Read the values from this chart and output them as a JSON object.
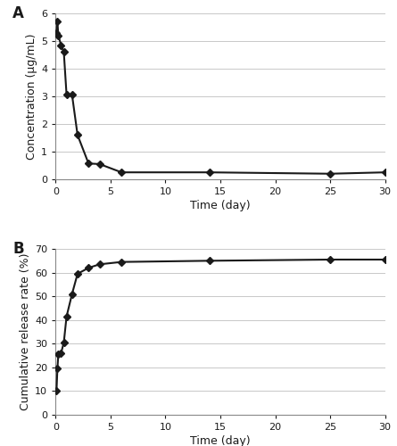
{
  "panel_A": {
    "time": [
      0.083,
      0.167,
      0.25,
      0.5,
      0.75,
      1.0,
      1.5,
      2.0,
      3.0,
      4.0,
      6.0,
      14.0,
      25.0,
      30.0
    ],
    "concentration": [
      5.3,
      5.7,
      5.2,
      4.85,
      4.6,
      3.05,
      3.05,
      1.6,
      0.57,
      0.55,
      0.25,
      0.25,
      0.2,
      0.25
    ],
    "ylabel": "Concentration (μg/mL)",
    "xlabel": "Time (day)",
    "ylim": [
      0,
      6
    ],
    "yticks": [
      0,
      1,
      2,
      3,
      4,
      5,
      6
    ],
    "xticks": [
      0,
      5,
      10,
      15,
      20,
      25,
      30
    ],
    "label": "A"
  },
  "panel_B": {
    "time": [
      0.083,
      0.167,
      0.25,
      0.5,
      0.75,
      1.0,
      1.5,
      2.0,
      3.0,
      4.0,
      6.0,
      14.0,
      25.0,
      30.0
    ],
    "cumulative": [
      10.0,
      19.5,
      25.5,
      26.0,
      30.5,
      41.5,
      51.0,
      59.5,
      62.0,
      63.5,
      64.5,
      65.0,
      65.5,
      65.5
    ],
    "ylabel": "Cumulative release rate (%)",
    "xlabel": "Time (day)",
    "ylim": [
      0,
      70
    ],
    "yticks": [
      0,
      10,
      20,
      30,
      40,
      50,
      60,
      70
    ],
    "xticks": [
      0,
      5,
      10,
      15,
      20,
      25,
      30
    ],
    "label": "B"
  },
  "line_color": "#1a1a1a",
  "marker": "D",
  "markersize": 4.5,
  "linewidth": 1.5,
  "background_color": "#ffffff",
  "grid_color": "#c8c8c8",
  "font_color": "#1a1a1a",
  "tick_fontsize": 8,
  "label_fontsize": 9,
  "panel_label_fontsize": 12
}
